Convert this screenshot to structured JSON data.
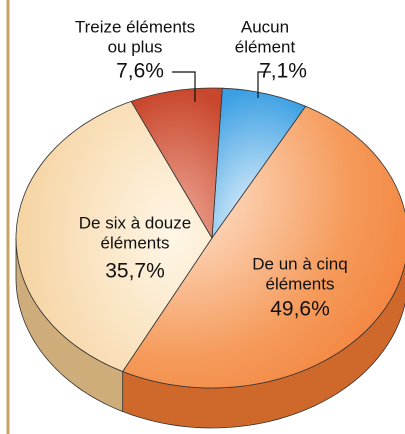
{
  "chart_data": {
    "type": "pie",
    "categories": [
      [
        "Aucun",
        "élément"
      ],
      [
        "De un à cinq",
        "éléments"
      ],
      [
        "De six à douze",
        "éléments"
      ],
      [
        "Treize éléments",
        "ou plus"
      ]
    ],
    "values": [
      7.1,
      49.6,
      35.7,
      7.6
    ],
    "value_labels": [
      "7,1%",
      "49,6%",
      "35,7%",
      "7,6%"
    ],
    "colors": [
      "#3b9fe3",
      "#f27a32",
      "#f3cb91",
      "#c9472c"
    ]
  }
}
